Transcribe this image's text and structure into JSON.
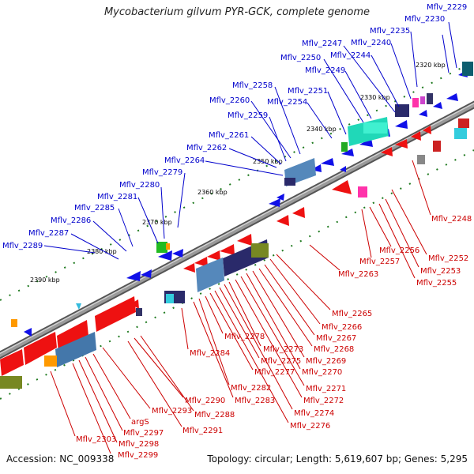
{
  "title": "Mycobacterium gilvum PYR-GCK, complete genome",
  "footer": {
    "accession": "Accession: NC_009338",
    "topology": "Topology: circular; Length: 5,619,607 bp; Genes: 5,295"
  },
  "colors": {
    "top_strand_label": "#0000cc",
    "bottom_strand_label": "#cc0000",
    "backbone": "#6a6a6a",
    "tick": "#1f7a1f"
  },
  "ticks": [
    "2320 kbp",
    "2330 kbp",
    "2340 kbp",
    "2350 kbp",
    "2360 kbp",
    "2370 kbp",
    "2380 kbp",
    "2390 kbp"
  ],
  "top_labels": [
    "Mflv_2229",
    "Mflv_2230",
    "Mflv_2235",
    "Mflv_2240",
    "Mflv_2244",
    "Mflv_2247",
    "Mflv_2249",
    "Mflv_2250",
    "Mflv_2251",
    "Mflv_2254",
    "Mflv_2258",
    "Mflv_2260",
    "Mflv_2259",
    "Mflv_2261",
    "Mflv_2262",
    "Mflv_2264",
    "Mflv_2279",
    "Mflv_2280",
    "Mflv_2281",
    "Mflv_2285",
    "Mflv_2286",
    "Mflv_2287",
    "Mflv_2289"
  ],
  "bottom_labels": [
    "Mflv_2248",
    "Mflv_2252",
    "Mflv_2253",
    "Mflv_2255",
    "Mflv_2256",
    "Mflv_2257",
    "Mflv_2263",
    "Mflv_2265",
    "Mflv_2266",
    "Mflv_2267",
    "Mflv_2268",
    "Mflv_2269",
    "Mflv_2270",
    "Mflv_2271",
    "Mflv_2272",
    "Mflv_2273",
    "Mflv_2274",
    "Mflv_2275",
    "Mflv_2276",
    "Mflv_2277",
    "Mflv_2278",
    "Mflv_2282",
    "Mflv_2283",
    "Mflv_2284",
    "Mflv_2288",
    "Mflv_2290",
    "Mflv_2291",
    "Mflv_2293",
    "argS",
    "Mflv_2297",
    "Mflv_2298",
    "Mflv_2299",
    "Mflv_2303"
  ]
}
